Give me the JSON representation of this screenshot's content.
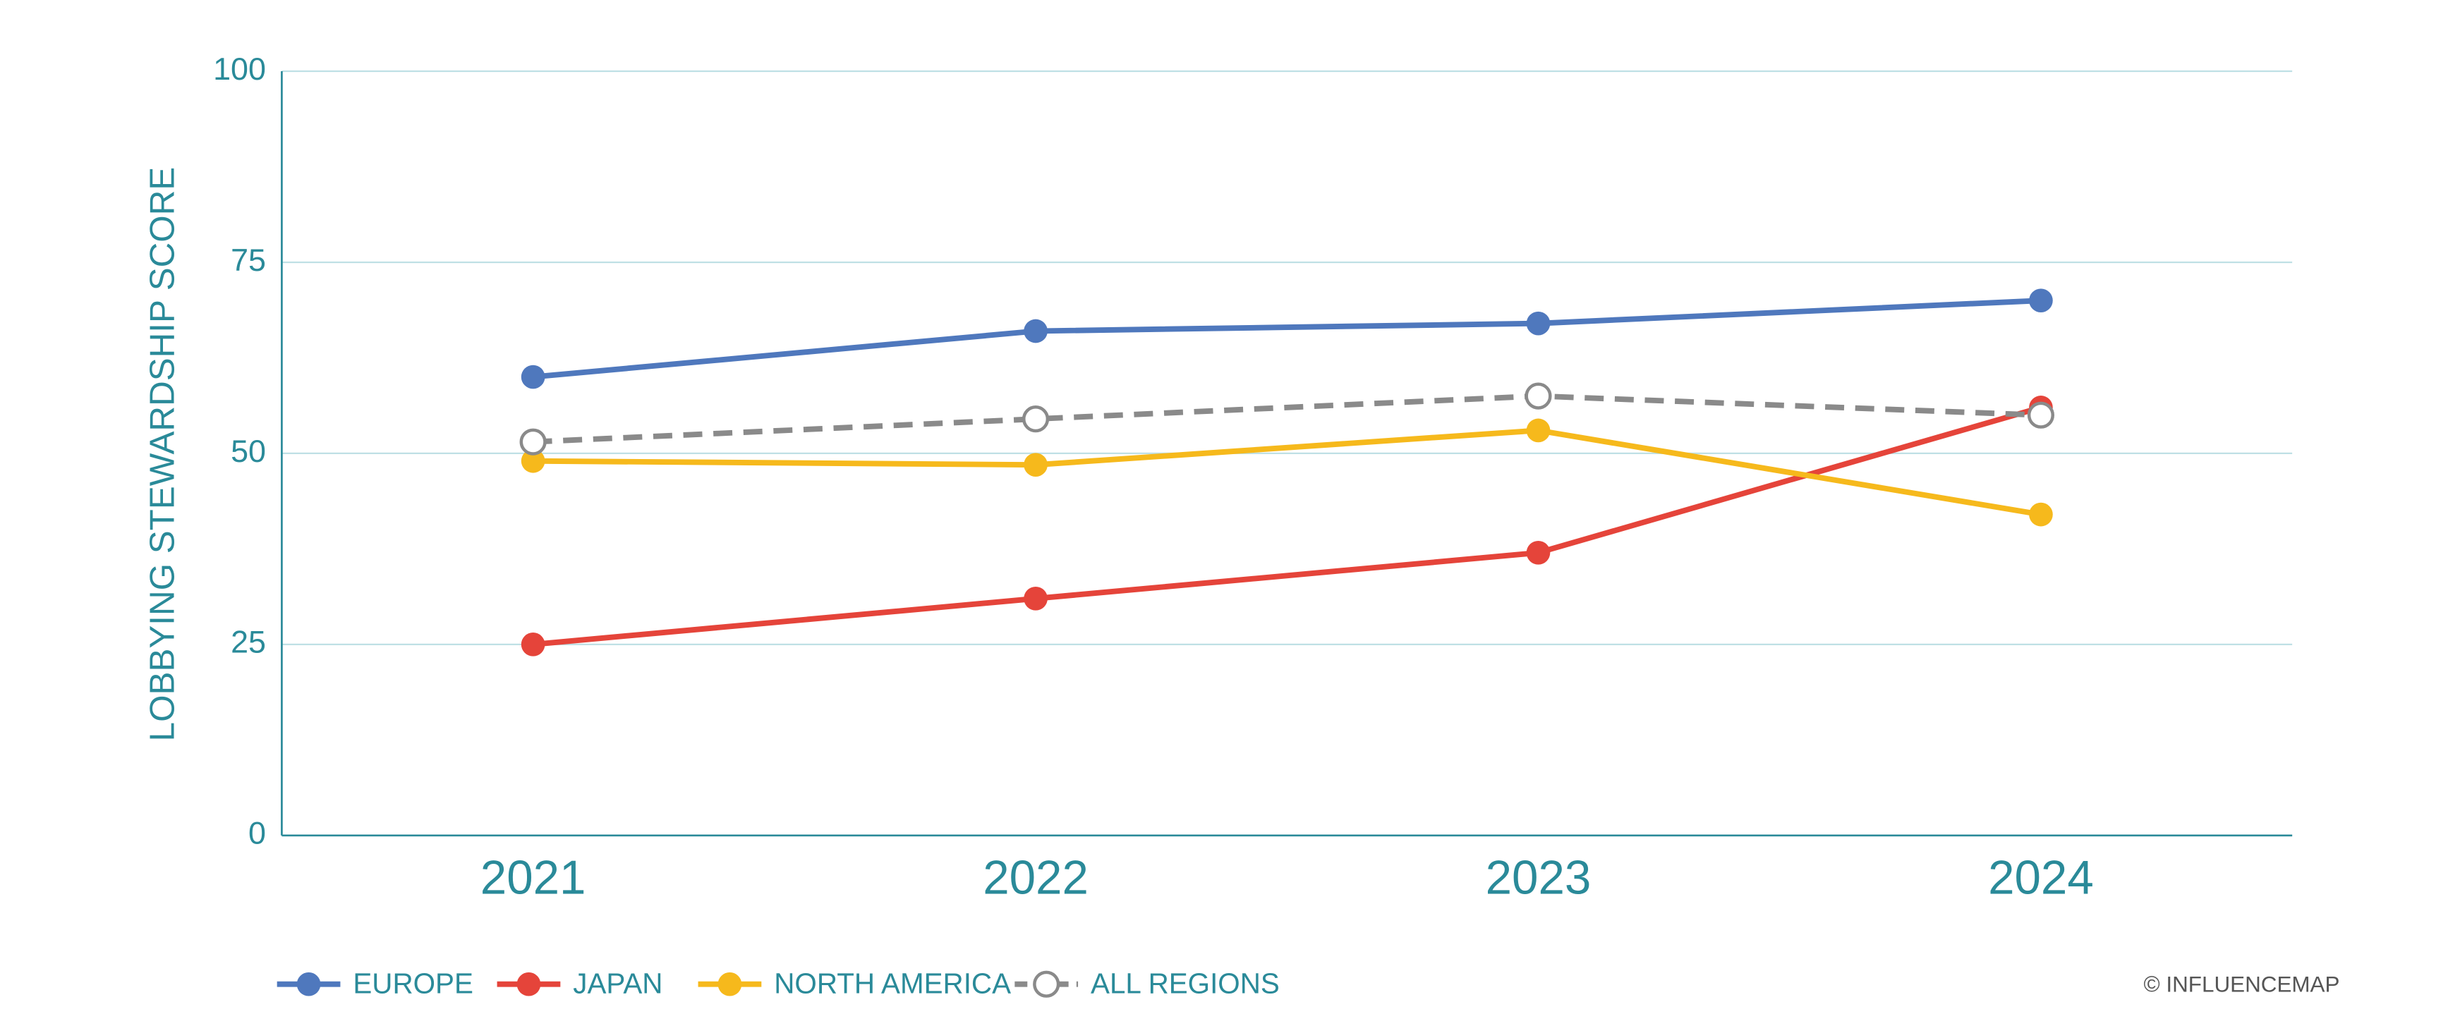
{
  "chart_data": {
    "type": "line",
    "y_label": "LOBBYING STEWARDSHIP SCORE",
    "categories": [
      "2021",
      "2022",
      "2023",
      "2024"
    ],
    "ylim": [
      0,
      100
    ],
    "yticks": [
      0,
      25,
      50,
      75,
      100
    ],
    "grid": true,
    "legend": "bottom",
    "credit": "© INFLUENCEMAP",
    "series": [
      {
        "name": "EUROPE",
        "color": "#4f78bd",
        "values": [
          60,
          66,
          67,
          70
        ]
      },
      {
        "name": "JAPAN",
        "color": "#e5443a",
        "values": [
          25,
          31,
          37,
          56
        ]
      },
      {
        "name": "NORTH AMERICA",
        "color": "#f6b91c",
        "values": [
          49,
          48.5,
          53,
          42
        ]
      },
      {
        "name": "ALL REGIONS",
        "color": "#8a8a8a",
        "values": [
          51.5,
          54.5,
          57.5,
          55
        ],
        "line_style": "dashed",
        "marker": "hollow"
      }
    ]
  }
}
